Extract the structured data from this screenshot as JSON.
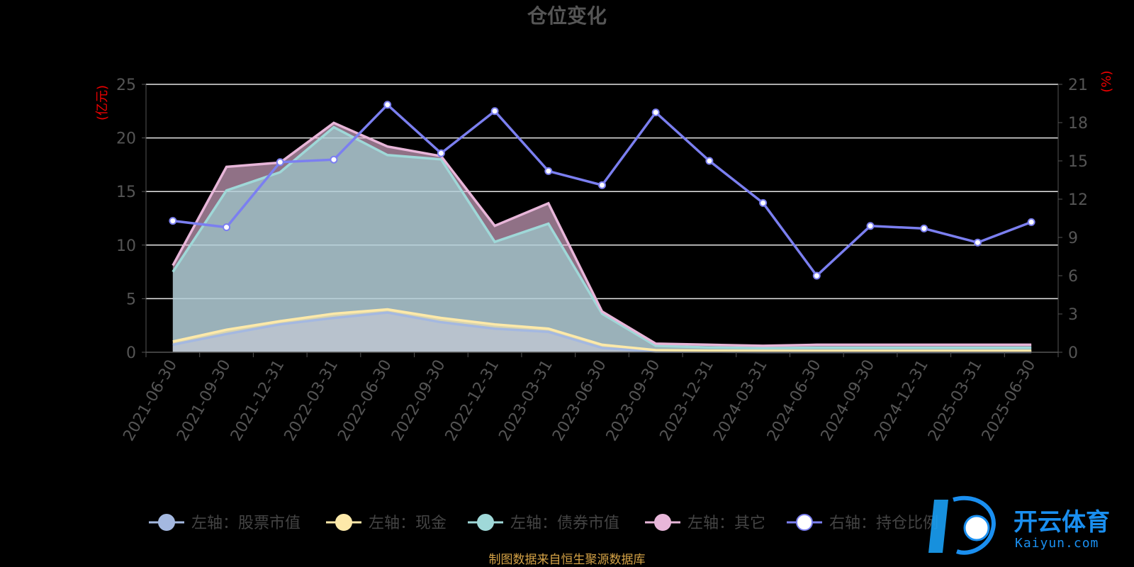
{
  "chart_data": {
    "type": "area",
    "title": "仓位变化",
    "left_unit": "(亿元)",
    "right_unit": "(%)",
    "categories": [
      "2021-06-30",
      "2021-09-30",
      "2021-12-31",
      "2022-03-31",
      "2022-06-30",
      "2022-09-30",
      "2022-12-31",
      "2023-03-31",
      "2023-06-30",
      "2023-09-30",
      "2023-12-31",
      "2024-03-31",
      "2024-06-30",
      "2024-09-30",
      "2024-12-31",
      "2025-03-31",
      "2025-06-30"
    ],
    "left_axis": {
      "min": 0,
      "max": 25,
      "ticks": [
        0,
        5,
        10,
        15,
        20,
        25
      ]
    },
    "right_axis": {
      "min": 0,
      "max": 21,
      "ticks": [
        0,
        3,
        6,
        9,
        12,
        15,
        18,
        21
      ]
    },
    "series": [
      {
        "name": "左轴：股票市值",
        "axis": "left",
        "type": "area",
        "color": "#a4b8e0",
        "values": [
          0.7,
          1.7,
          2.6,
          3.2,
          3.7,
          2.8,
          2.2,
          1.9,
          0.4,
          0.05,
          0.05,
          0.03,
          0.03,
          0.03,
          0.03,
          0.03,
          0.03
        ]
      },
      {
        "name": "左轴：现金",
        "axis": "left",
        "type": "area",
        "color": "#fde9a9",
        "values": [
          0.3,
          0.4,
          0.3,
          0.4,
          0.3,
          0.4,
          0.4,
          0.3,
          0.3,
          0.15,
          0.1,
          0.1,
          0.1,
          0.1,
          0.1,
          0.1,
          0.1
        ]
      },
      {
        "name": "左轴：债券市值",
        "axis": "left",
        "type": "area",
        "color": "#9fd8d8",
        "values": [
          6.5,
          13.0,
          13.9,
          17.4,
          14.4,
          14.8,
          7.7,
          9.8,
          2.9,
          0.4,
          0.3,
          0.25,
          0.3,
          0.3,
          0.3,
          0.3,
          0.3
        ]
      },
      {
        "name": "左轴：其它",
        "axis": "left",
        "type": "area",
        "color": "#e8b6d9",
        "values": [
          0.6,
          2.2,
          0.9,
          0.4,
          0.8,
          0.3,
          1.5,
          1.9,
          0.2,
          0.2,
          0.25,
          0.22,
          0.27,
          0.27,
          0.27,
          0.27,
          0.27
        ]
      },
      {
        "name": "右轴：持仓比例",
        "axis": "right",
        "type": "line",
        "color": "#7b7ff0",
        "values": [
          10.3,
          9.8,
          14.9,
          15.1,
          19.4,
          15.6,
          18.9,
          14.2,
          13.1,
          18.8,
          15.0,
          11.7,
          6.0,
          9.9,
          9.7,
          8.6,
          10.2
        ]
      }
    ],
    "legend_position": "bottom",
    "grid": true
  },
  "source_note": "制图数据来自恒生聚源数据库",
  "watermark": {
    "text": "开云体育",
    "sub": "Kaiyun.com"
  }
}
